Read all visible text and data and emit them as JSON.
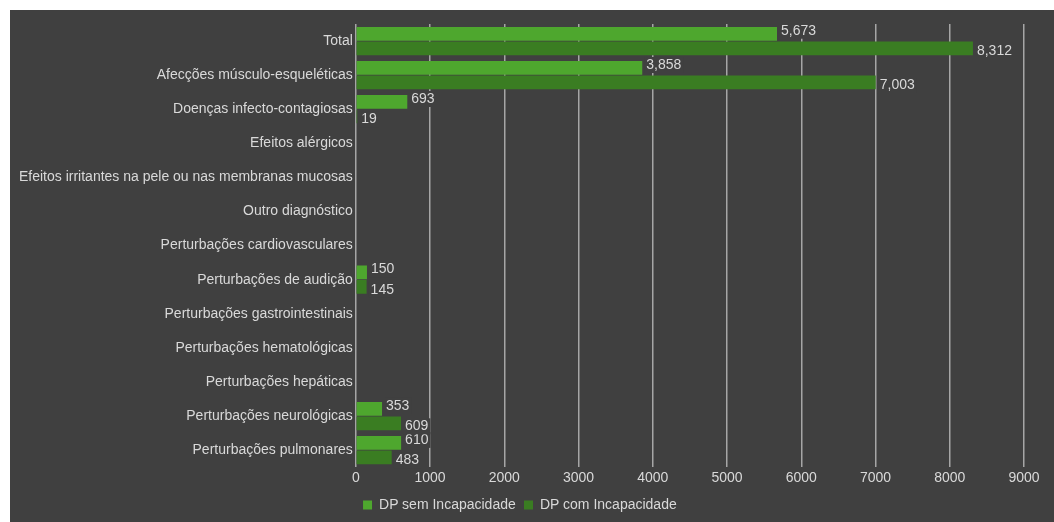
{
  "chart_data": {
    "type": "bar",
    "orientation": "horizontal",
    "categories": [
      "Total",
      "Afecções músculo-esqueléticas",
      "Doenças infecto-contagiosas",
      "Efeitos alérgicos",
      "Efeitos irritantes na pele ou nas membranas mucosas",
      "Outro diagnóstico",
      "Perturbações cardiovasculares",
      "Perturbações de audição",
      "Perturbações gastrointestinais",
      "Perturbações hematológicas",
      "Perturbações hepáticas",
      "Perturbações neurológicas",
      "Perturbações pulmonares"
    ],
    "series": [
      {
        "name": "DP sem Incapacidade",
        "color": "#4ea72e",
        "values": [
          5673,
          3858,
          693,
          null,
          null,
          null,
          null,
          150,
          null,
          null,
          null,
          353,
          610
        ],
        "value_labels": [
          "5,673",
          "3,858",
          "693",
          null,
          null,
          null,
          null,
          "150",
          null,
          null,
          null,
          "353",
          "610"
        ]
      },
      {
        "name": "DP com Incapacidade",
        "color": "#3a7d22",
        "values": [
          8312,
          7003,
          19,
          null,
          null,
          null,
          null,
          145,
          null,
          null,
          null,
          609,
          483
        ],
        "value_labels": [
          "8,312",
          "7,003",
          "19",
          null,
          null,
          null,
          null,
          "145",
          null,
          null,
          null,
          "609",
          "483"
        ]
      }
    ],
    "xlim": [
      0,
      9000
    ],
    "xticks": [
      0,
      1000,
      2000,
      3000,
      4000,
      5000,
      6000,
      7000,
      8000,
      9000
    ],
    "grid": "x",
    "legend": "bottom"
  }
}
